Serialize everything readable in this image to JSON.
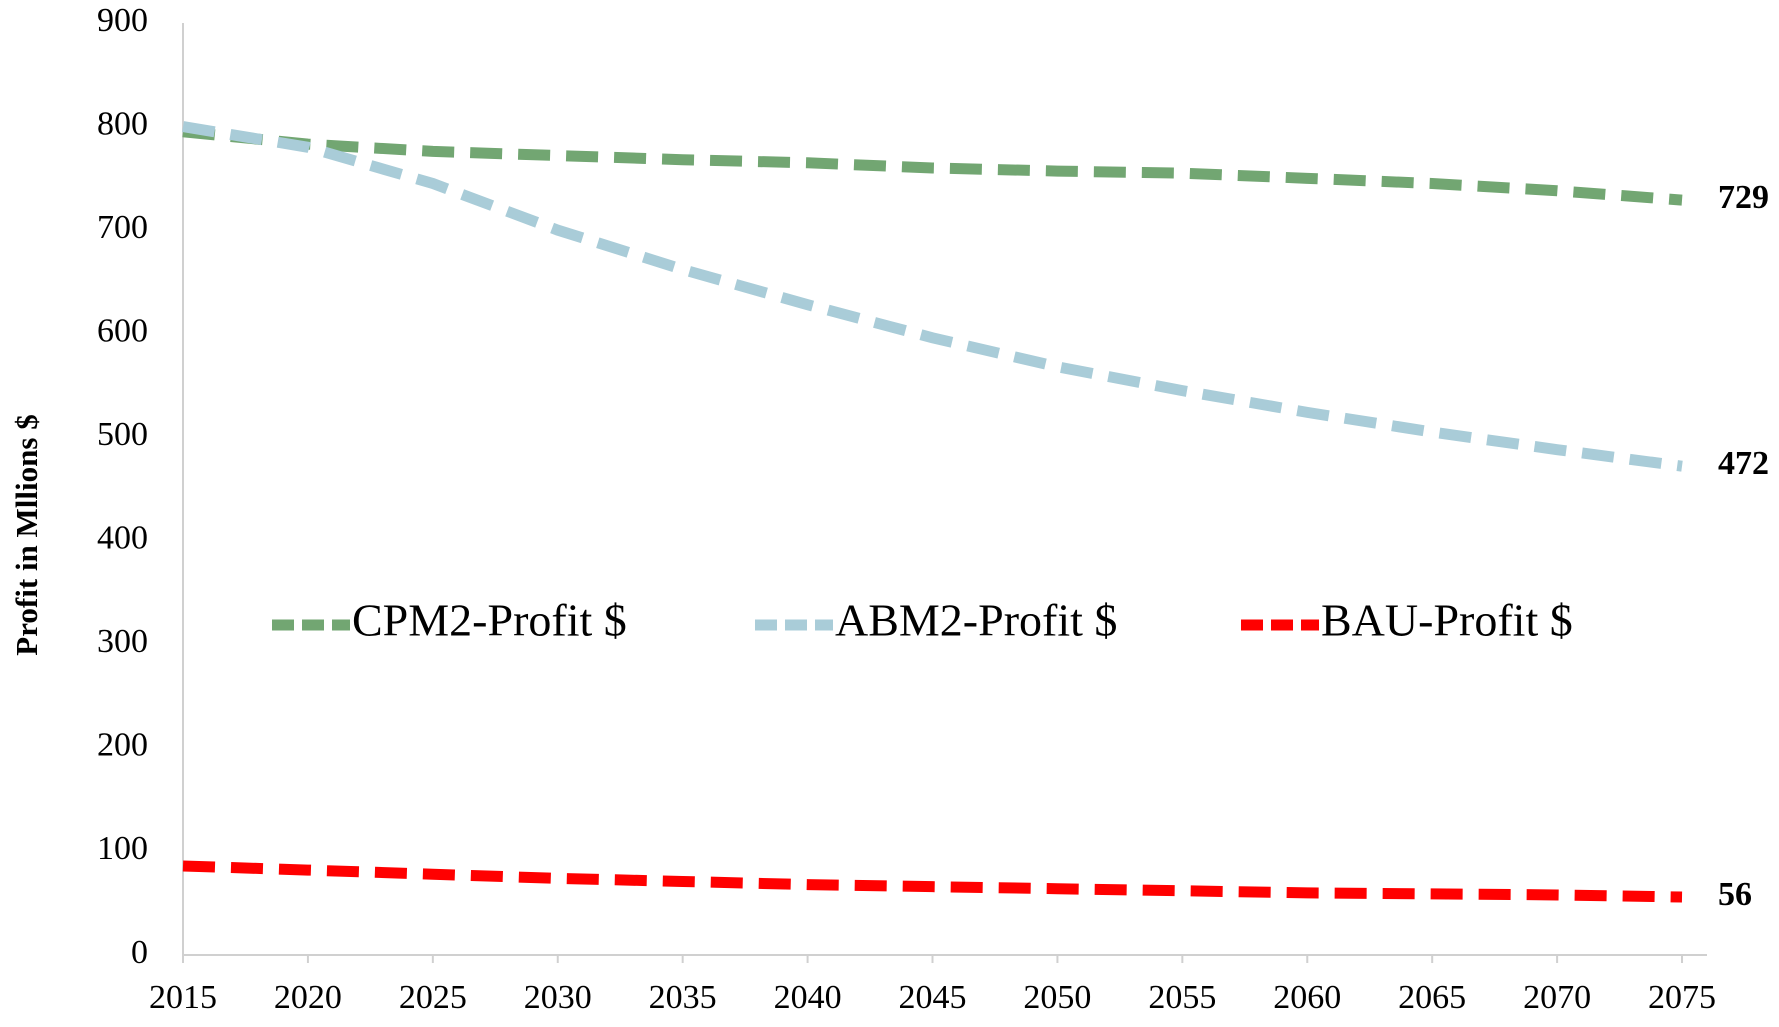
{
  "chart_data": {
    "type": "line",
    "y_label": "Profit in Mllions $",
    "x": [
      2015,
      2020,
      2025,
      2030,
      2035,
      2040,
      2045,
      2050,
      2055,
      2060,
      2065,
      2070,
      2075
    ],
    "series": [
      {
        "name": "CPM2-Profit $",
        "color": "#72a672",
        "label_color": "#2e75b6",
        "values": [
          795,
          783,
          776,
          772,
          768,
          765,
          760,
          757,
          755,
          750,
          745,
          738,
          729
        ]
      },
      {
        "name": "ABM2-Profit $",
        "color": "#a9ccd8",
        "label_color": "#92d050",
        "values": [
          800,
          780,
          745,
          700,
          662,
          628,
          596,
          568,
          545,
          524,
          505,
          488,
          472
        ]
      },
      {
        "name": "BAU-Profit $",
        "color": "#ff0000",
        "label_color": "#ff0000",
        "values": [
          86,
          82,
          78,
          74,
          71,
          68,
          66,
          64,
          62,
          60,
          59,
          58,
          56
        ]
      }
    ],
    "xlim": [
      2015,
      2076
    ],
    "xticks": [
      2015,
      2020,
      2025,
      2030,
      2035,
      2040,
      2045,
      2050,
      2055,
      2060,
      2065,
      2070,
      2075
    ],
    "ylim": [
      0,
      900
    ],
    "yticks": [
      0,
      100,
      200,
      300,
      400,
      500,
      600,
      700,
      800,
      900
    ],
    "grid": false,
    "legend": "center"
  }
}
